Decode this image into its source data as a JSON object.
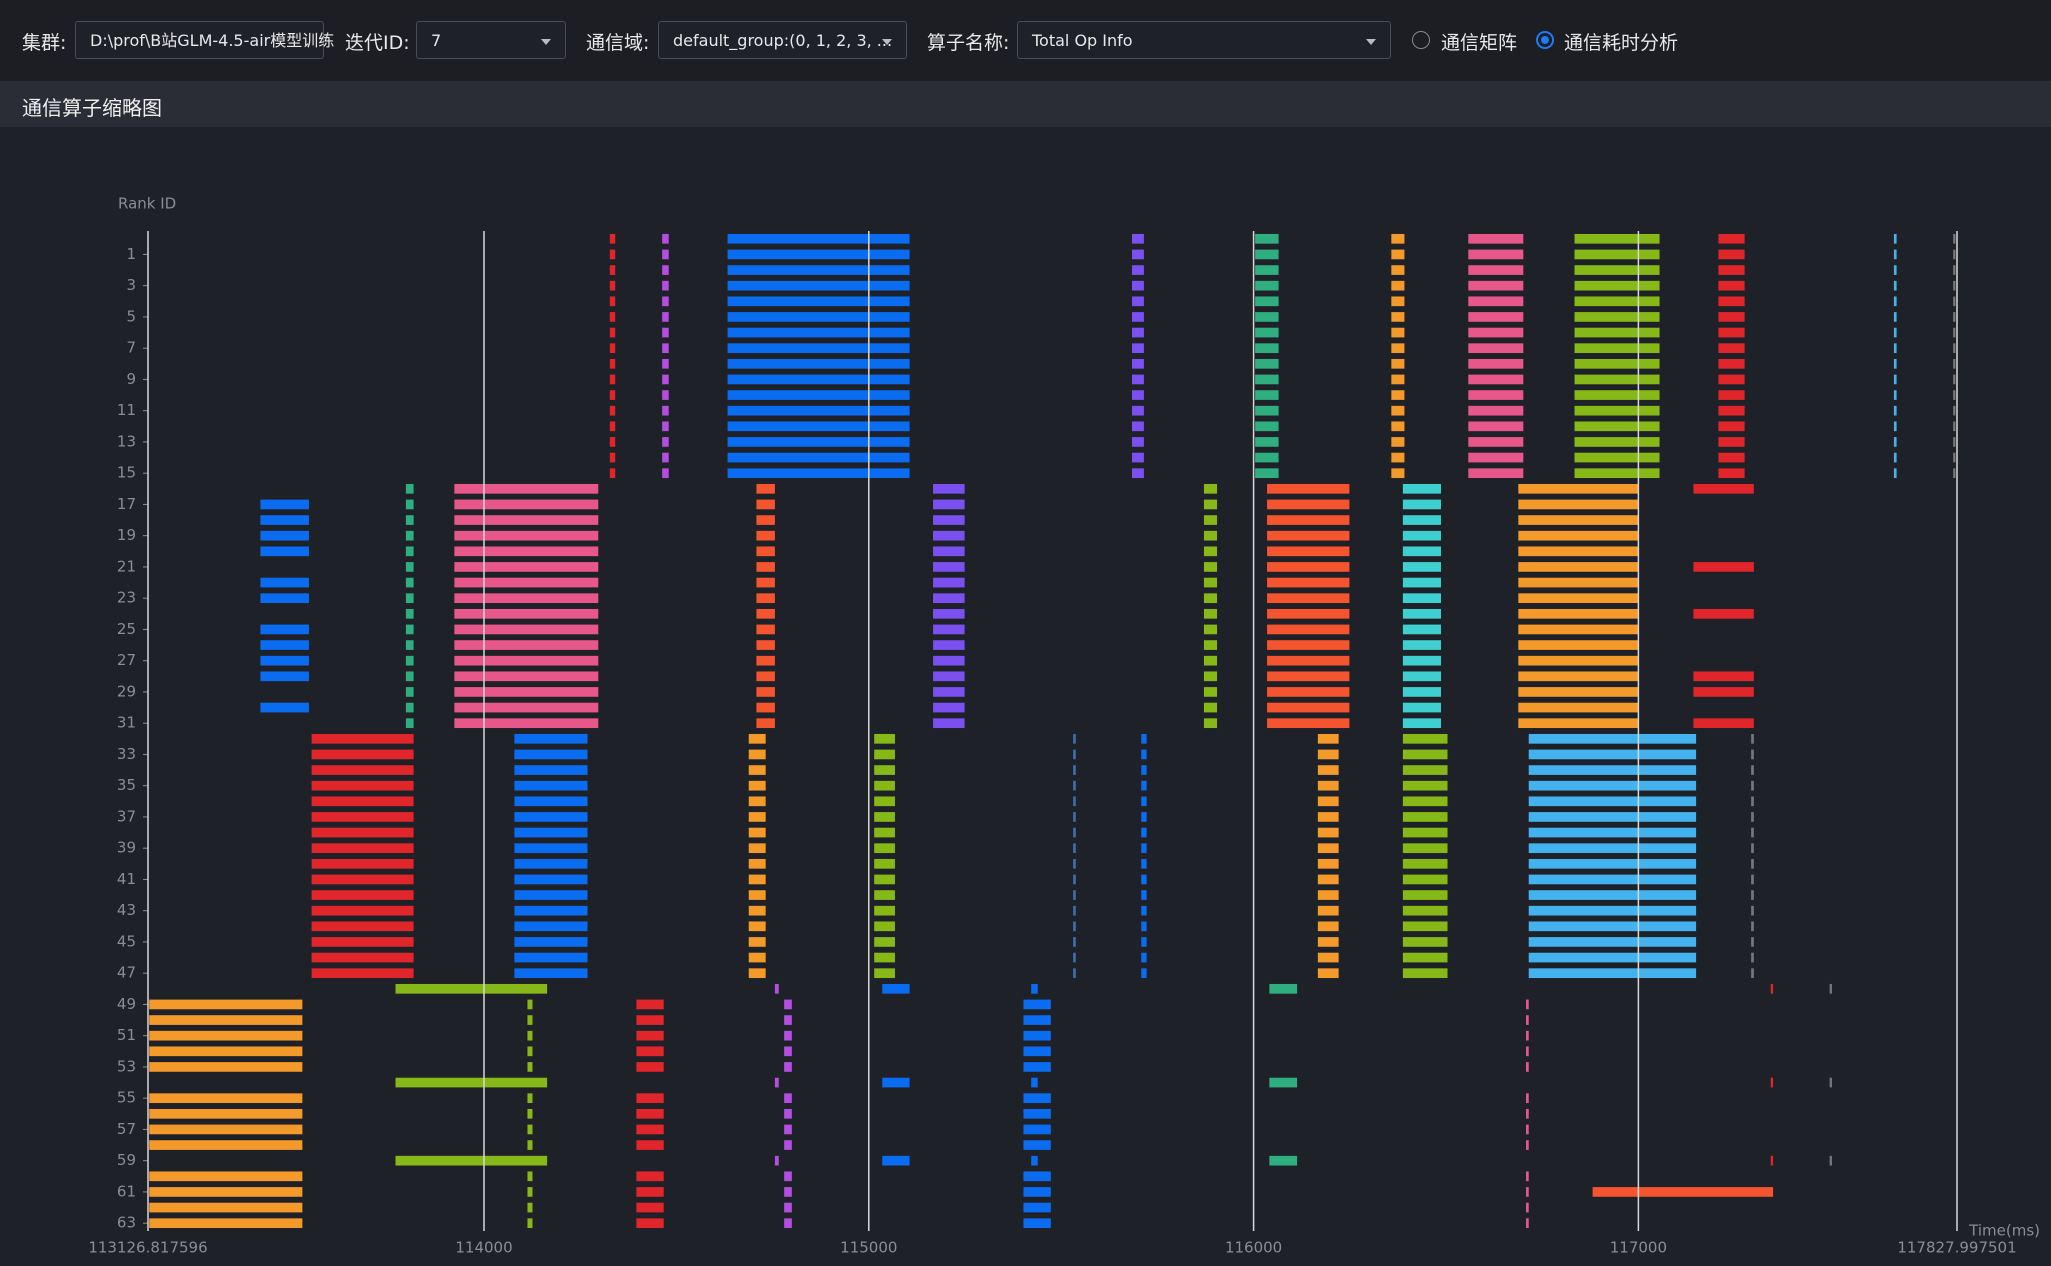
{
  "header": {
    "cluster_label": "集群:",
    "cluster_value": "D:\\prof\\B站GLM-4.5-air模型训练",
    "iteration_label": "迭代ID:",
    "iteration_value": "7",
    "domain_label": "通信域:",
    "domain_value": "default_group:(0, 1, 2, 3, ...",
    "op_label": "算子名称:",
    "op_value": "Total Op Info",
    "radio_matrix": "通信矩阵",
    "radio_time": "通信耗时分析",
    "section_title": "通信算子缩略图"
  },
  "chart_data": {
    "type": "timeline",
    "y_label": "Rank ID",
    "x_label": "Time(ms)",
    "xlim": [
      113126.817596,
      117827.997501
    ],
    "xticks": [
      113126.817596,
      114000,
      115000,
      116000,
      117000,
      117827.997501
    ],
    "ylim": [
      -0.5,
      63.5
    ],
    "yticks": [
      1,
      3,
      5,
      7,
      9,
      11,
      13,
      15,
      17,
      19,
      21,
      23,
      25,
      27,
      29,
      31,
      33,
      35,
      37,
      39,
      41,
      43,
      45,
      47,
      49,
      51,
      53,
      55,
      57,
      59,
      61,
      63
    ],
    "grid": true,
    "blocks": [
      {
        "color": "#e0262b",
        "start": 114327,
        "end": 114341,
        "ranks": [
          [
            0,
            15
          ]
        ]
      },
      {
        "color": "#b44ee0",
        "start": 114463,
        "end": 114480,
        "ranks": [
          [
            0,
            15
          ]
        ]
      },
      {
        "color": "#0a6cf0",
        "start": 114633,
        "end": 115106,
        "ranks": [
          [
            0,
            15
          ]
        ]
      },
      {
        "color": "#7b4ff0",
        "start": 115684,
        "end": 115715,
        "ranks": [
          [
            0,
            15
          ]
        ]
      },
      {
        "color": "#2fae80",
        "start": 116004,
        "end": 116065,
        "ranks": [
          [
            0,
            15
          ]
        ]
      },
      {
        "color": "#f39a2a",
        "start": 116358,
        "end": 116392,
        "ranks": [
          [
            0,
            15
          ]
        ]
      },
      {
        "color": "#e8578a",
        "start": 116558,
        "end": 116701,
        "ranks": [
          [
            0,
            15
          ]
        ]
      },
      {
        "color": "#86b817",
        "start": 116834,
        "end": 117055,
        "ranks": [
          [
            0,
            15
          ]
        ]
      },
      {
        "color": "#e0262b",
        "start": 117208,
        "end": 117276,
        "ranks": [
          [
            0,
            15
          ]
        ]
      },
      {
        "color": "#43b2ee",
        "start": 117664,
        "end": 117671,
        "ranks": [
          [
            0,
            15
          ]
        ]
      },
      {
        "color": "#777777",
        "start": 117818,
        "end": 117824,
        "ranks": [
          [
            0,
            15
          ]
        ]
      },
      {
        "color": "#0a6cf0",
        "start": 113419,
        "end": 113545,
        "ranks": [
          [
            17,
            20
          ],
          [
            22,
            23
          ],
          [
            25,
            28
          ],
          [
            30,
            30
          ]
        ]
      },
      {
        "color": "#2fae80",
        "start": 113797,
        "end": 113817,
        "ranks": [
          [
            16,
            31
          ]
        ]
      },
      {
        "color": "#e8578a",
        "start": 113923,
        "end": 114297,
        "ranks": [
          [
            16,
            31
          ]
        ]
      },
      {
        "color": "#f4552e",
        "start": 114708,
        "end": 114756,
        "ranks": [
          [
            16,
            31
          ]
        ]
      },
      {
        "color": "#7b4ff0",
        "start": 115167,
        "end": 115249,
        "ranks": [
          [
            16,
            31
          ]
        ]
      },
      {
        "color": "#86b817",
        "start": 115871,
        "end": 115905,
        "ranks": [
          [
            16,
            31
          ]
        ]
      },
      {
        "color": "#f4552e",
        "start": 116035,
        "end": 116249,
        "ranks": [
          [
            16,
            31
          ]
        ]
      },
      {
        "color": "#3fcfd0",
        "start": 116388,
        "end": 116487,
        "ranks": [
          [
            16,
            31
          ]
        ]
      },
      {
        "color": "#f39a2a",
        "start": 116688,
        "end": 117000,
        "ranks": [
          [
            16,
            31
          ]
        ]
      },
      {
        "color": "#e0262b",
        "start": 117143,
        "end": 117300,
        "ranks": [
          [
            16,
            16
          ],
          [
            21,
            21
          ],
          [
            24,
            24
          ],
          [
            28,
            29
          ],
          [
            31,
            31
          ]
        ]
      },
      {
        "color": "#e0262b",
        "start": 113552,
        "end": 113817,
        "ranks": [
          [
            32,
            47
          ]
        ]
      },
      {
        "color": "#0a6cf0",
        "start": 114079,
        "end": 114269,
        "ranks": [
          [
            32,
            47
          ]
        ]
      },
      {
        "color": "#f39a2a",
        "start": 114688,
        "end": 114732,
        "ranks": [
          [
            32,
            47
          ]
        ]
      },
      {
        "color": "#86b817",
        "start": 115014,
        "end": 115068,
        "ranks": [
          [
            32,
            47
          ]
        ]
      },
      {
        "color": "#3b6ea8",
        "start": 115531,
        "end": 115538,
        "ranks": [
          [
            32,
            47
          ]
        ]
      },
      {
        "color": "#0a6cf0",
        "start": 115708,
        "end": 115722,
        "ranks": [
          [
            32,
            47
          ]
        ]
      },
      {
        "color": "#f39a2a",
        "start": 116167,
        "end": 116221,
        "ranks": [
          [
            32,
            47
          ]
        ]
      },
      {
        "color": "#86b817",
        "start": 116388,
        "end": 116504,
        "ranks": [
          [
            32,
            47
          ]
        ]
      },
      {
        "color": "#43b2ee",
        "start": 116715,
        "end": 117150,
        "ranks": [
          [
            32,
            47
          ]
        ]
      },
      {
        "color": "#777777",
        "start": 117293,
        "end": 117300,
        "ranks": [
          [
            32,
            47
          ]
        ]
      },
      {
        "color": "#f39a2a",
        "start": 113130,
        "end": 113528,
        "ranks": [
          [
            49,
            53
          ],
          [
            55,
            58
          ],
          [
            60,
            63
          ]
        ]
      },
      {
        "color": "#86b817",
        "start": 113770,
        "end": 114164,
        "ranks": [
          [
            48,
            48
          ],
          [
            54,
            54
          ],
          [
            59,
            59
          ]
        ]
      },
      {
        "color": "#86b817",
        "start": 114113,
        "end": 114126,
        "ranks": [
          [
            49,
            53
          ],
          [
            55,
            58
          ],
          [
            60,
            63
          ]
        ]
      },
      {
        "color": "#e0262b",
        "start": 114396,
        "end": 114467,
        "ranks": [
          [
            49,
            53
          ],
          [
            55,
            58
          ],
          [
            60,
            63
          ]
        ]
      },
      {
        "color": "#b44ee0",
        "start": 114780,
        "end": 114800,
        "ranks": [
          [
            49,
            53
          ],
          [
            55,
            58
          ],
          [
            60,
            63
          ]
        ]
      },
      {
        "color": "#b44ee0",
        "start": 114756,
        "end": 114766,
        "ranks": [
          [
            48,
            48
          ],
          [
            54,
            54
          ],
          [
            59,
            59
          ]
        ]
      },
      {
        "color": "#0a6cf0",
        "start": 115035,
        "end": 115106,
        "ranks": [
          [
            48,
            48
          ],
          [
            54,
            54
          ],
          [
            59,
            59
          ]
        ]
      },
      {
        "color": "#0a6cf0",
        "start": 115402,
        "end": 115473,
        "ranks": [
          [
            49,
            53
          ],
          [
            55,
            58
          ],
          [
            60,
            63
          ]
        ]
      },
      {
        "color": "#0a6cf0",
        "start": 115422,
        "end": 115439,
        "ranks": [
          [
            48,
            48
          ],
          [
            54,
            54
          ],
          [
            59,
            59
          ]
        ]
      },
      {
        "color": "#2fae80",
        "start": 116041,
        "end": 116113,
        "ranks": [
          [
            48,
            48
          ],
          [
            54,
            54
          ],
          [
            59,
            59
          ]
        ]
      },
      {
        "color": "#e8578a",
        "start": 116708,
        "end": 116715,
        "ranks": [
          [
            49,
            53
          ],
          [
            55,
            58
          ],
          [
            60,
            63
          ]
        ]
      },
      {
        "color": "#f4552e",
        "start": 116881,
        "end": 117350,
        "ranks": [
          [
            61,
            61
          ]
        ]
      },
      {
        "color": "#e0262b",
        "start": 117344,
        "end": 117350,
        "ranks": [
          [
            48,
            48
          ],
          [
            54,
            54
          ],
          [
            59,
            59
          ]
        ]
      },
      {
        "color": "#777777",
        "start": 117497,
        "end": 117503,
        "ranks": [
          [
            48,
            48
          ],
          [
            54,
            54
          ],
          [
            59,
            59
          ]
        ]
      }
    ]
  }
}
